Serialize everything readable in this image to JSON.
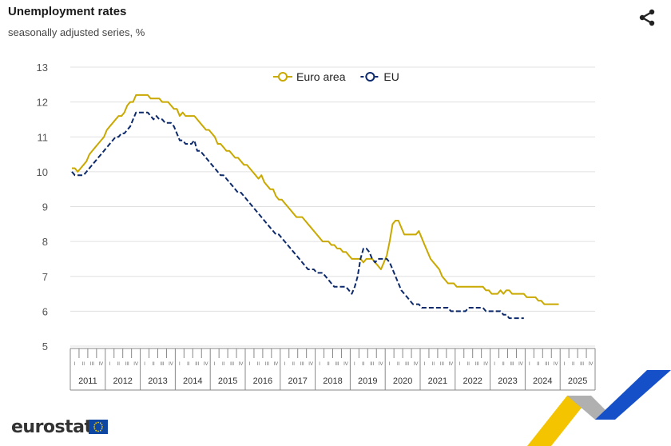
{
  "header": {
    "title": "Unemployment rates",
    "subtitle": "seasonally adjusted series, %"
  },
  "icons": {
    "share": "share-icon",
    "logo_flag": "eu-flag-icon"
  },
  "footer": {
    "logo_text": "eurostat"
  },
  "colors": {
    "euro_area": "#c9a800",
    "eu": "#0c2a6b",
    "grid": "#e0e0e0",
    "axis_text": "#555555"
  },
  "chart_data": {
    "type": "line",
    "title": "Unemployment rates",
    "subtitle": "seasonally adjusted series, %",
    "xlabel": "",
    "ylabel": "",
    "ylim": [
      5,
      13
    ],
    "yticks": [
      "5",
      "6",
      "7",
      "8",
      "9",
      "10",
      "11",
      "12",
      "13"
    ],
    "years": [
      "2011",
      "2012",
      "2013",
      "2014",
      "2015",
      "2016",
      "2017",
      "2018",
      "2019",
      "2020",
      "2021",
      "2022",
      "2023",
      "2024",
      "2025"
    ],
    "quarter_labels": [
      "I",
      "II",
      "III",
      "IV"
    ],
    "legend_position": "top-center",
    "grid": true,
    "x_start": "2011-01",
    "series": [
      {
        "name": "Euro area",
        "color": "#c9a800",
        "style": "solid",
        "values": [
          10.1,
          10.1,
          10.0,
          10.1,
          10.2,
          10.3,
          10.5,
          10.6,
          10.7,
          10.8,
          10.9,
          11.0,
          11.2,
          11.3,
          11.4,
          11.5,
          11.6,
          11.6,
          11.7,
          11.9,
          12.0,
          12.0,
          12.2,
          12.2,
          12.2,
          12.2,
          12.2,
          12.1,
          12.1,
          12.1,
          12.1,
          12.0,
          12.0,
          12.0,
          11.9,
          11.8,
          11.8,
          11.6,
          11.7,
          11.6,
          11.6,
          11.6,
          11.6,
          11.5,
          11.4,
          11.3,
          11.2,
          11.2,
          11.1,
          11.0,
          10.8,
          10.8,
          10.7,
          10.6,
          10.6,
          10.5,
          10.4,
          10.4,
          10.3,
          10.2,
          10.2,
          10.1,
          10.0,
          9.9,
          9.8,
          9.9,
          9.7,
          9.6,
          9.5,
          9.5,
          9.3,
          9.2,
          9.2,
          9.1,
          9.0,
          8.9,
          8.8,
          8.7,
          8.7,
          8.7,
          8.6,
          8.5,
          8.4,
          8.3,
          8.2,
          8.1,
          8.0,
          8.0,
          8.0,
          7.9,
          7.9,
          7.8,
          7.8,
          7.7,
          7.7,
          7.6,
          7.5,
          7.5,
          7.5,
          7.5,
          7.4,
          7.5,
          7.5,
          7.5,
          7.4,
          7.3,
          7.2,
          7.4,
          7.6,
          8.0,
          8.5,
          8.6,
          8.6,
          8.4,
          8.2,
          8.2,
          8.2,
          8.2,
          8.2,
          8.3,
          8.1,
          7.9,
          7.7,
          7.5,
          7.4,
          7.3,
          7.2,
          7.0,
          6.9,
          6.8,
          6.8,
          6.8,
          6.7,
          6.7,
          6.7,
          6.7,
          6.7,
          6.7,
          6.7,
          6.7,
          6.7,
          6.7,
          6.6,
          6.6,
          6.5,
          6.5,
          6.5,
          6.6,
          6.5,
          6.6,
          6.6,
          6.5,
          6.5,
          6.5,
          6.5,
          6.5,
          6.4,
          6.4,
          6.4,
          6.4,
          6.3,
          6.3,
          6.2,
          6.2,
          6.2,
          6.2,
          6.2,
          6.2
        ]
      },
      {
        "name": "EU",
        "color": "#0c2a6b",
        "style": "dashed",
        "values": [
          10.0,
          9.9,
          9.9,
          9.9,
          9.9,
          10.0,
          10.1,
          10.2,
          10.3,
          10.4,
          10.5,
          10.6,
          10.7,
          10.8,
          10.9,
          11.0,
          11.0,
          11.1,
          11.1,
          11.2,
          11.3,
          11.5,
          11.7,
          11.7,
          11.7,
          11.7,
          11.7,
          11.6,
          11.5,
          11.6,
          11.5,
          11.5,
          11.4,
          11.4,
          11.4,
          11.3,
          11.1,
          10.9,
          10.9,
          10.8,
          10.8,
          10.8,
          10.9,
          10.6,
          10.6,
          10.5,
          10.4,
          10.3,
          10.2,
          10.1,
          10.0,
          9.9,
          9.9,
          9.8,
          9.7,
          9.6,
          9.5,
          9.4,
          9.4,
          9.3,
          9.2,
          9.1,
          9.0,
          8.9,
          8.8,
          8.7,
          8.6,
          8.5,
          8.4,
          8.3,
          8.2,
          8.2,
          8.1,
          8.0,
          7.9,
          7.8,
          7.7,
          7.6,
          7.5,
          7.4,
          7.3,
          7.2,
          7.2,
          7.2,
          7.1,
          7.1,
          7.1,
          7.0,
          6.9,
          6.8,
          6.7,
          6.7,
          6.7,
          6.7,
          6.7,
          6.6,
          6.5,
          6.7,
          7.0,
          7.5,
          7.8,
          7.8,
          7.7,
          7.5,
          7.4,
          7.5,
          7.5,
          7.5,
          7.5,
          7.4,
          7.2,
          7.0,
          6.8,
          6.6,
          6.5,
          6.4,
          6.3,
          6.2,
          6.2,
          6.2,
          6.1,
          6.1,
          6.1,
          6.1,
          6.1,
          6.1,
          6.1,
          6.1,
          6.1,
          6.1,
          6.0,
          6.0,
          6.0,
          6.0,
          6.0,
          6.0,
          6.1,
          6.1,
          6.1,
          6.1,
          6.1,
          6.1,
          6.0,
          6.0,
          6.0,
          6.0,
          6.0,
          6.0,
          5.9,
          5.9,
          5.8,
          5.8,
          5.8,
          5.8,
          5.8,
          5.8
        ]
      }
    ]
  }
}
